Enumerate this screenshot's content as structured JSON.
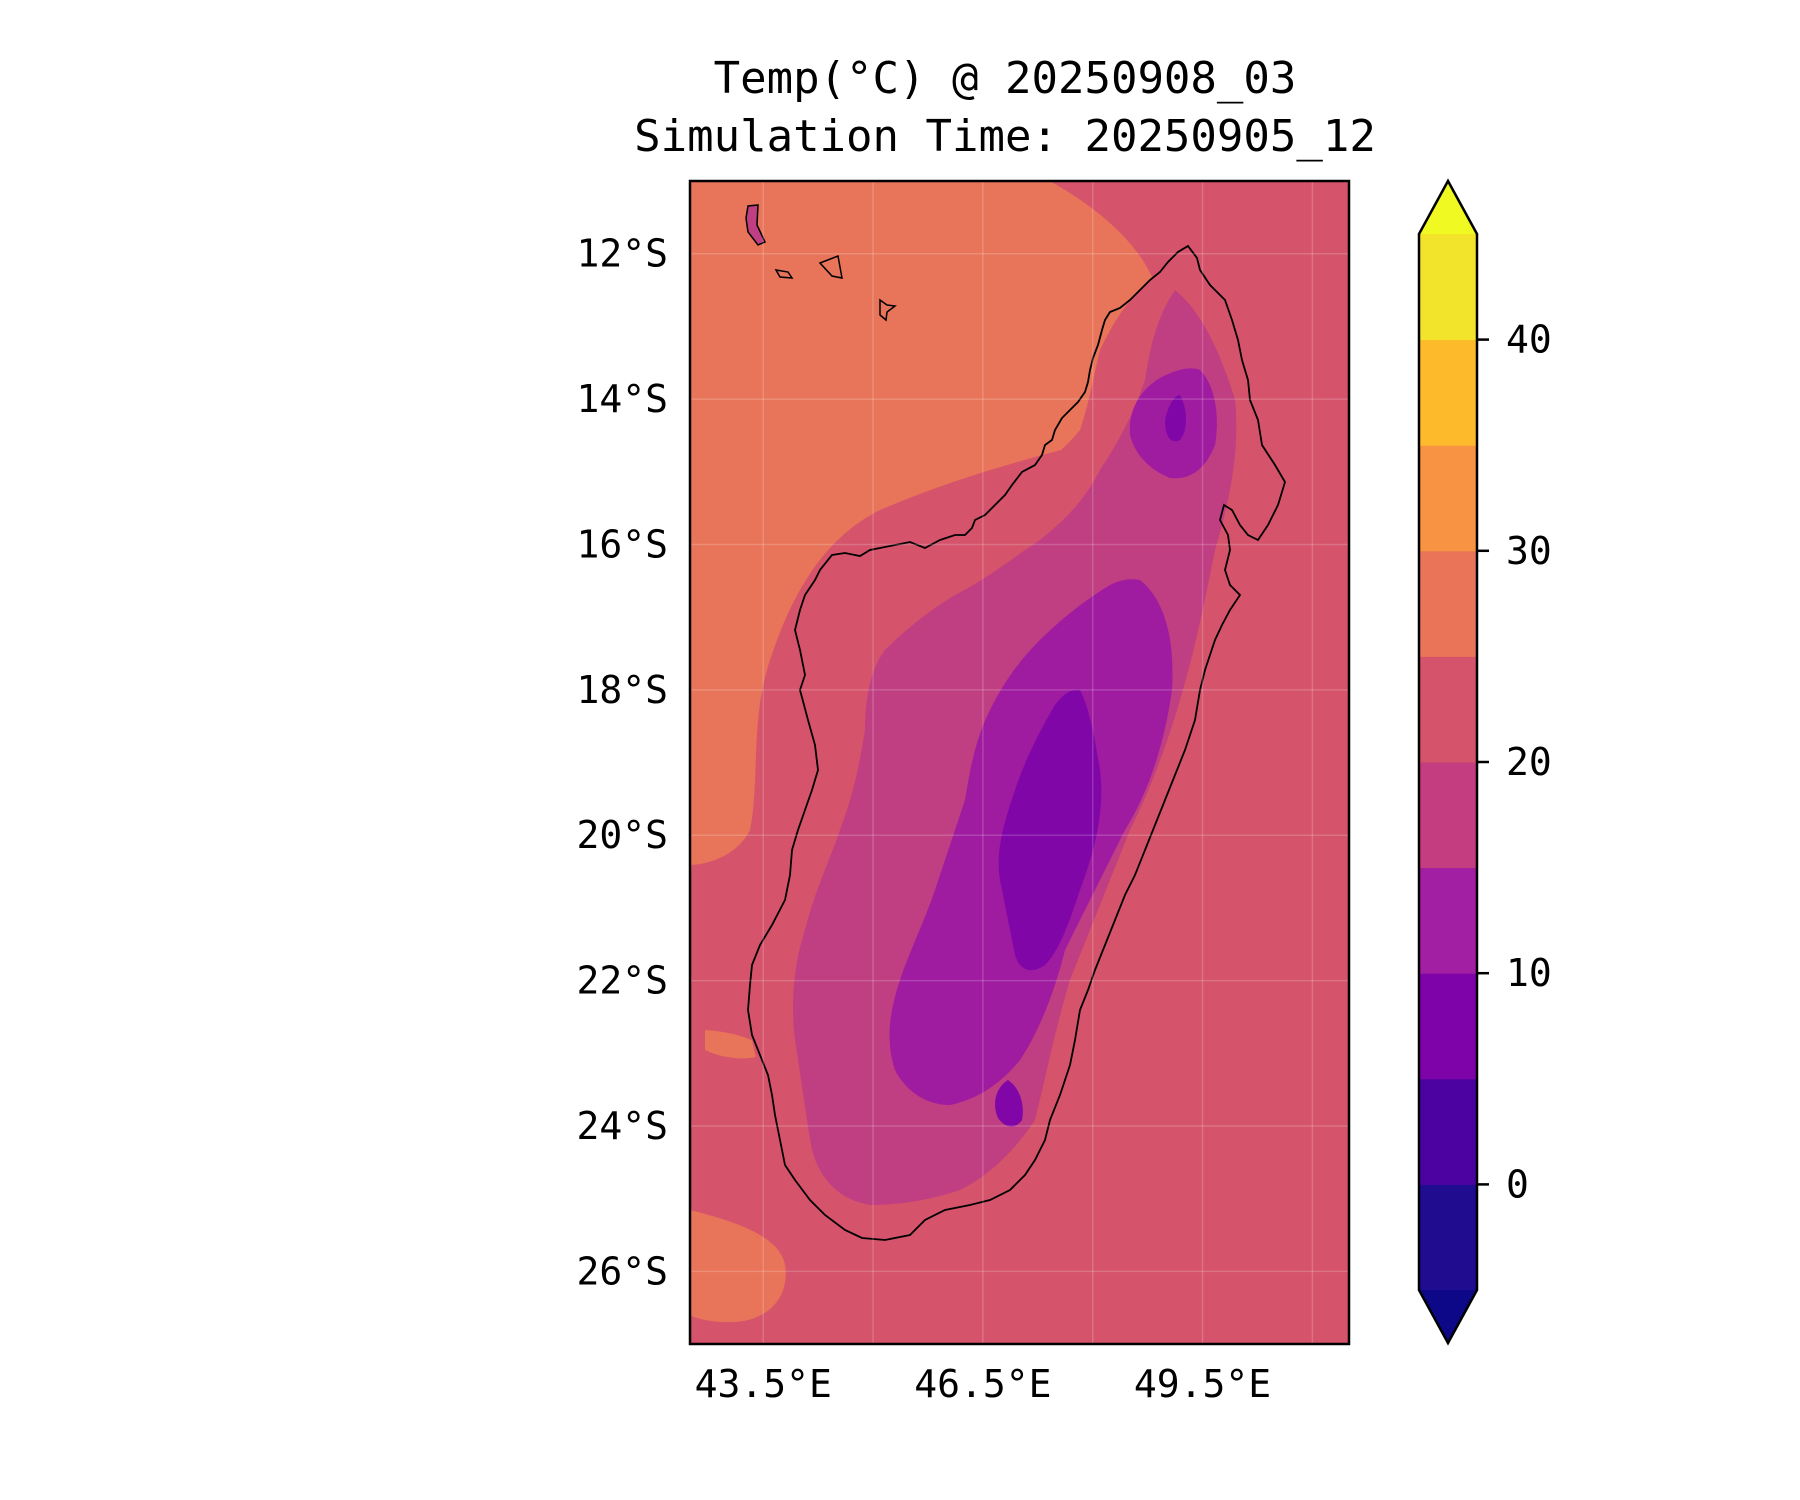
{
  "title": "Temp(°C) @ 20250908_03",
  "subtitle": "Simulation Time: 20250905_12",
  "map": {
    "extent": {
      "lon": [
        42.5,
        51.5
      ],
      "lat": [
        -27.0,
        -11.0
      ]
    },
    "y_ticks": [
      {
        "lat": -12,
        "label": "12°S"
      },
      {
        "lat": -14,
        "label": "14°S"
      },
      {
        "lat": -16,
        "label": "16°S"
      },
      {
        "lat": -18,
        "label": "18°S"
      },
      {
        "lat": -20,
        "label": "20°S"
      },
      {
        "lat": -22,
        "label": "22°S"
      },
      {
        "lat": -24,
        "label": "24°S"
      },
      {
        "lat": -26,
        "label": "26°S"
      }
    ],
    "x_ticks": [
      {
        "lon": 43.5,
        "label": "43.5°E"
      },
      {
        "lon": 46.5,
        "label": "46.5°E"
      },
      {
        "lon": 49.5,
        "label": "49.5°E"
      }
    ],
    "grid": true,
    "colors": {
      "ocean_east": "#d5536b",
      "ocean_west": "#e87459",
      "land_20_25": "#d5536b",
      "land_15_20": "#c03e82",
      "land_10_15": "#9f1ba0",
      "land_5_10": "#8106a8"
    }
  },
  "colorbar": {
    "levels": [
      -5,
      0,
      5,
      10,
      15,
      20,
      25,
      30,
      35,
      40,
      45
    ],
    "colors": [
      "#1f0c8f",
      "#4c02a1",
      "#7e03a8",
      "#a21ea2",
      "#c43d80",
      "#d5536b",
      "#e97458",
      "#f79342",
      "#fdbb2b",
      "#f2e42a"
    ],
    "extend_min_color": "#0d0887",
    "extend_max_color": "#f0f921",
    "tick_labels": [
      {
        "value": 0,
        "label": "0"
      },
      {
        "value": 10,
        "label": "10"
      },
      {
        "value": 20,
        "label": "20"
      },
      {
        "value": 30,
        "label": "30"
      },
      {
        "value": 40,
        "label": "40"
      }
    ],
    "extend": "both"
  }
}
